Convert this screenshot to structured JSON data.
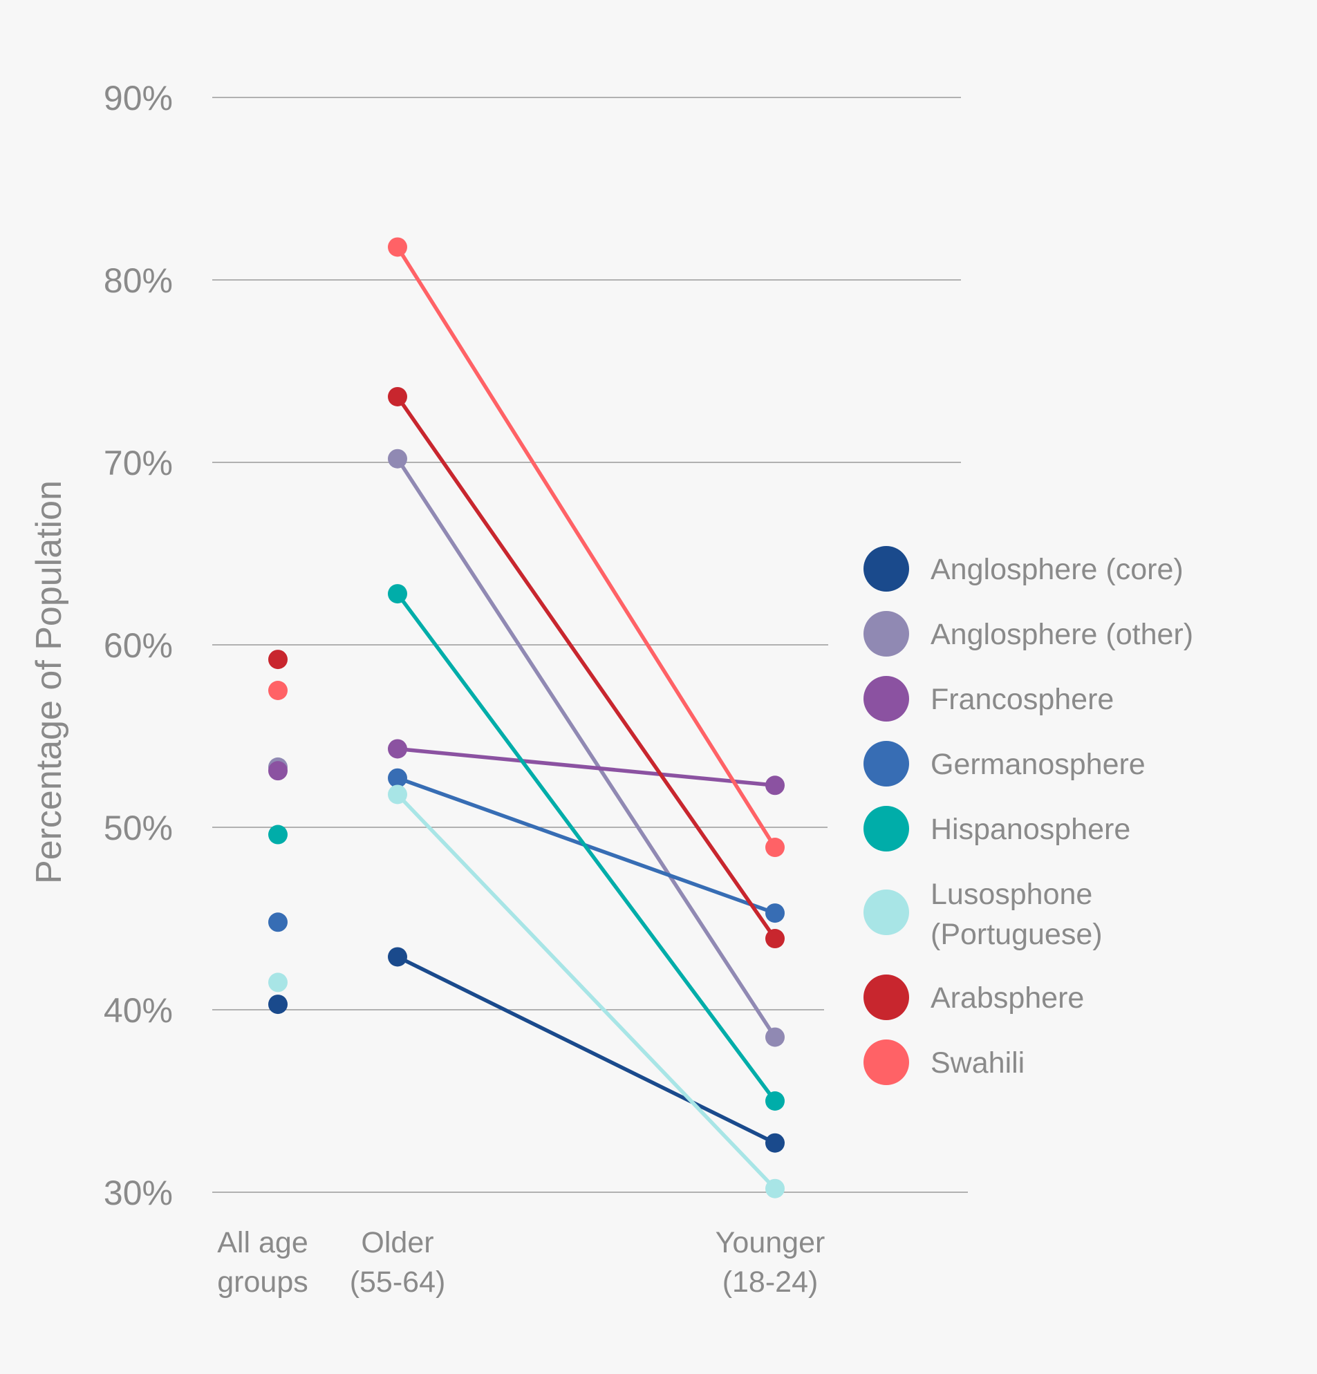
{
  "chart_data": {
    "type": "line",
    "ylabel": "Percentage of Population",
    "ylim": [
      30,
      90
    ],
    "yticks": [
      30,
      40,
      50,
      60,
      70,
      80,
      90
    ],
    "ytick_labels": [
      "30%",
      "40%",
      "50%",
      "60%",
      "70%",
      "80%",
      "90%"
    ],
    "categories": [
      {
        "key": "all",
        "lines": [
          "All age",
          "groups"
        ]
      },
      {
        "key": "older",
        "lines": [
          "Older",
          "(55-64)"
        ]
      },
      {
        "key": "younger",
        "lines": [
          "Younger",
          "(18-24)"
        ]
      }
    ],
    "grid": true,
    "legend_position": "right",
    "series": [
      {
        "name": "Anglosphere (core)",
        "color": "#1a4a8c",
        "all": 40.3,
        "older": 42.9,
        "younger": 32.7
      },
      {
        "name": "Anglosphere (other)",
        "color": "#9089b3",
        "all": 53.3,
        "older": 70.2,
        "younger": 38.5
      },
      {
        "name": "Francosphere",
        "color": "#8b52a1",
        "all": 53.1,
        "older": 54.3,
        "younger": 52.3
      },
      {
        "name": "Germanosphere",
        "color": "#376db4",
        "all": 44.8,
        "older": 52.7,
        "younger": 45.3
      },
      {
        "name": "Hispanosphere",
        "color": "#00ada9",
        "all": 49.6,
        "older": 62.8,
        "younger": 35.0
      },
      {
        "name": "Lusosphone (Portuguese)",
        "legend_lines": [
          "Lusosphone",
          "(Portuguese)"
        ],
        "color": "#a8e5e6",
        "all": 41.5,
        "older": 51.8,
        "younger": 30.2
      },
      {
        "name": "Arabsphere",
        "color": "#c8262e",
        "all": 59.2,
        "older": 73.6,
        "younger": 43.9
      },
      {
        "name": "Swahili",
        "color": "#ff6266",
        "all": 57.5,
        "older": 81.8,
        "younger": 48.9
      }
    ]
  }
}
